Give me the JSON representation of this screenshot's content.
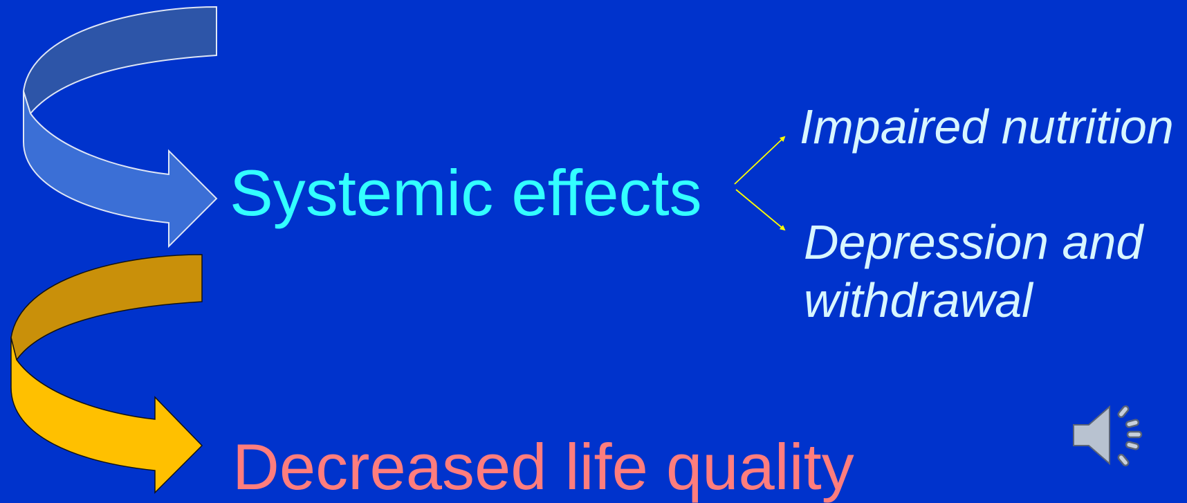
{
  "colors": {
    "background": "#0033cc",
    "systemic_text": "#33ffff",
    "decreased_text": "#ff7d7d",
    "item_text": "#d8f6ff",
    "connector": "#ffff00",
    "blue_arrow_top": "#2d55a8",
    "blue_arrow_bottom": "#3b6fd6",
    "gold_arrow_top": "#c9900a",
    "gold_arrow_bottom": "#ffc000"
  },
  "diagram": {
    "systemic_label": "Systemic effects",
    "decreased_label": "Decreased life quality",
    "effects": [
      "Impaired nutrition",
      "Depression and withdrawal"
    ]
  },
  "icons": {
    "audio": "speaker-icon"
  }
}
